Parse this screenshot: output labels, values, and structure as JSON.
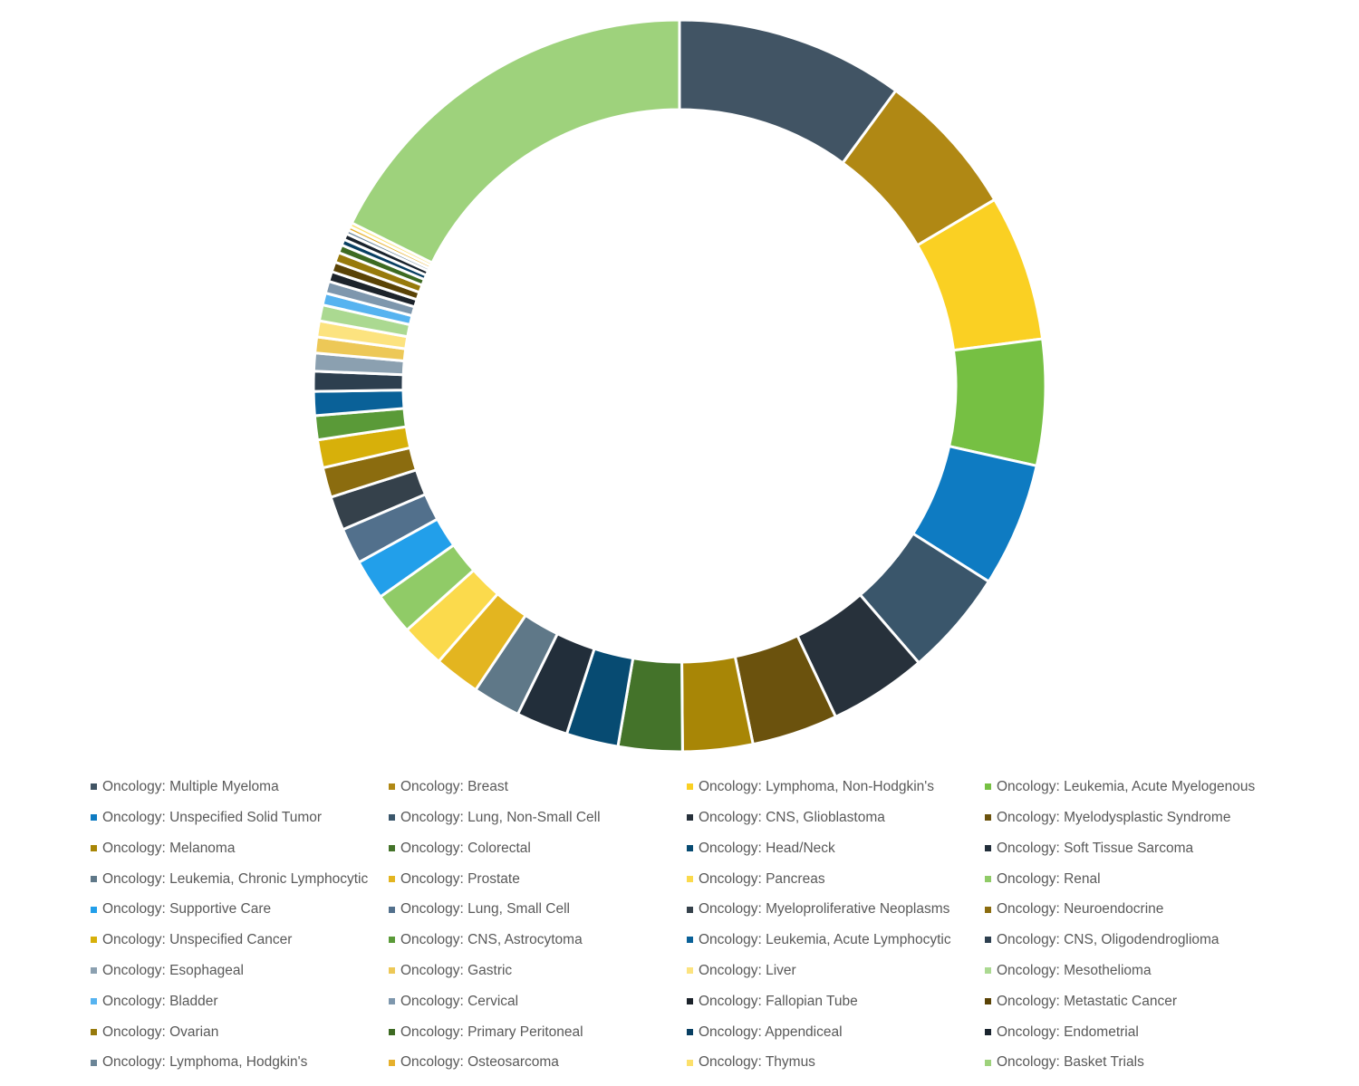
{
  "chart_data": {
    "type": "pie",
    "variant": "doughnut",
    "title": "",
    "legend_position": "bottom",
    "unit": "%",
    "series": [
      {
        "label": "Oncology: Multiple Myeloma",
        "value": 11.4,
        "color": "#415464"
      },
      {
        "label": "Oncology: Breast",
        "value": 7.3,
        "color": "#B08814"
      },
      {
        "label": "Oncology: Lymphoma, Non-Hodgkin's",
        "value": 7.3,
        "color": "#FAD023"
      },
      {
        "label": "Oncology: Leukemia, Acute Myelogenous",
        "value": 6.3,
        "color": "#76C043"
      },
      {
        "label": "Oncology: Unspecified Solid Tumor",
        "value": 6.2,
        "color": "#0E7BC2"
      },
      {
        "label": "Oncology: Lung, Non-Small Cell",
        "value": 5.3,
        "color": "#3A566B"
      },
      {
        "label": "Oncology: CNS, Glioblastoma",
        "value": 4.9,
        "color": "#27313B"
      },
      {
        "label": "Oncology: Myelodysplastic Syndrome",
        "value": 4.3,
        "color": "#6B520D"
      },
      {
        "label": "Oncology: Melanoma",
        "value": 3.5,
        "color": "#A88606"
      },
      {
        "label": "Oncology: Colorectal",
        "value": 3.2,
        "color": "#44732A"
      },
      {
        "label": "Oncology: Head/Neck",
        "value": 2.6,
        "color": "#074B72"
      },
      {
        "label": "Oncology: Soft Tissue Sarcoma",
        "value": 2.6,
        "color": "#222E3A"
      },
      {
        "label": "Oncology: Leukemia, Chronic Lymphocytic",
        "value": 2.4,
        "color": "#5F7888"
      },
      {
        "label": "Oncology: Prostate",
        "value": 2.3,
        "color": "#E3B520"
      },
      {
        "label": "Oncology: Pancreas",
        "value": 2.2,
        "color": "#FBDA4C"
      },
      {
        "label": "Oncology: Renal",
        "value": 2.1,
        "color": "#90CB67"
      },
      {
        "label": "Oncology: Supportive Care",
        "value": 2.0,
        "color": "#229FEA"
      },
      {
        "label": "Oncology: Lung, Small Cell",
        "value": 1.8,
        "color": "#52708C"
      },
      {
        "label": "Oncology: Myeloproliferative Neoplasms",
        "value": 1.7,
        "color": "#35414B"
      },
      {
        "label": "Oncology: Neuroendocrine",
        "value": 1.5,
        "color": "#8B6C0F"
      },
      {
        "label": "Oncology: Unspecified Cancer",
        "value": 1.4,
        "color": "#D7B00A"
      },
      {
        "label": "Oncology: CNS, Astrocytoma",
        "value": 1.2,
        "color": "#5A9A38"
      },
      {
        "label": "Oncology: Leukemia, Acute Lymphocytic",
        "value": 1.2,
        "color": "#0A6198"
      },
      {
        "label": "Oncology: CNS, Oligodendroglioma",
        "value": 1.0,
        "color": "#2D3F4F"
      },
      {
        "label": "Oncology: Esophageal",
        "value": 0.9,
        "color": "#8BA0B0"
      },
      {
        "label": "Oncology: Gastric",
        "value": 0.8,
        "color": "#EDC857"
      },
      {
        "label": "Oncology: Liver",
        "value": 0.8,
        "color": "#FCE37F"
      },
      {
        "label": "Oncology: Mesothelioma",
        "value": 0.8,
        "color": "#ABD991"
      },
      {
        "label": "Oncology: Bladder",
        "value": 0.6,
        "color": "#56B3F0"
      },
      {
        "label": "Oncology: Cervical",
        "value": 0.6,
        "color": "#7E97AD"
      },
      {
        "label": "Oncology: Fallopian Tube",
        "value": 0.5,
        "color": "#1C232B"
      },
      {
        "label": "Oncology: Metastatic Cancer",
        "value": 0.5,
        "color": "#5A4306"
      },
      {
        "label": "Oncology: Ovarian",
        "value": 0.5,
        "color": "#977A0C"
      },
      {
        "label": "Oncology: Primary Peritoneal",
        "value": 0.4,
        "color": "#3D6A22"
      },
      {
        "label": "Oncology: Appendiceal",
        "value": 0.3,
        "color": "#083F62"
      },
      {
        "label": "Oncology: Endometrial",
        "value": 0.3,
        "color": "#1A242E"
      },
      {
        "label": "Oncology: Lymphoma, Hodgkin's",
        "value": 0.2,
        "color": "#6B8597"
      },
      {
        "label": "Oncology: Osteosarcoma",
        "value": 0.2,
        "color": "#E6B02C"
      },
      {
        "label": "Oncology: Thymus",
        "value": 0.2,
        "color": "#FCE06B"
      },
      {
        "label": "Oncology: Basket Trials",
        "value": 20.0,
        "color": "#9ED27C"
      }
    ]
  }
}
